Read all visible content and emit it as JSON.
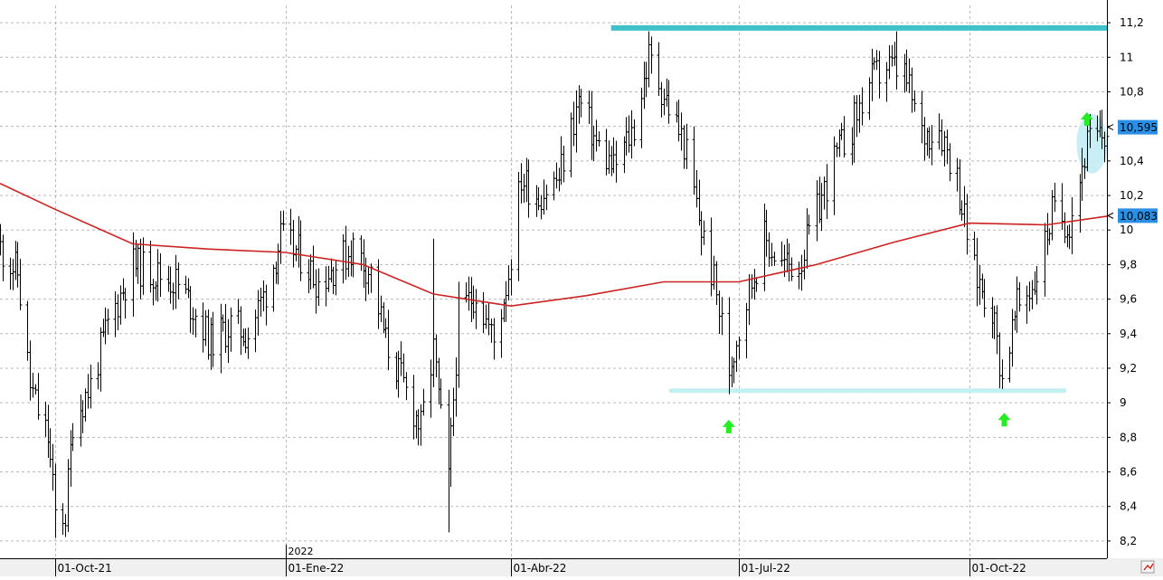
{
  "chart_data": {
    "type": "ohlc",
    "grid": true,
    "y_axis": {
      "side": "right",
      "range": [
        8.1,
        11.3
      ],
      "ticks": [
        8.2,
        8.4,
        8.6,
        8.8,
        9,
        9.2,
        9.4,
        9.6,
        9.8,
        10,
        10.2,
        10.4,
        10.6,
        10.8,
        11,
        11.2
      ],
      "tick_labels": [
        "8,2",
        "8,4",
        "8,6",
        "8,8",
        "9",
        "9,2",
        "9,4",
        "9,6",
        "9,8",
        "10",
        "10,2",
        "10,4",
        "10,6",
        "10,8",
        "11",
        "11,2"
      ]
    },
    "x_axis": {
      "range": [
        "2021-09-09",
        "2022-11-25"
      ],
      "ticks": [
        "2021-10-01",
        "2022-01-01",
        "2022-04-01",
        "2022-07-01",
        "2022-10-01"
      ],
      "tick_labels": [
        "01-Oct-21",
        "01-Ene-22",
        "01-Abr-22",
        "01-Jul-22",
        "01-Oct-22"
      ],
      "year_label": "2022"
    },
    "price_anchors": [
      [
        "2021-09-09",
        9.9
      ],
      [
        "2021-09-16",
        9.75
      ],
      [
        "2021-09-21",
        9.1
      ],
      [
        "2021-09-24",
        8.95
      ],
      [
        "2021-09-28",
        8.8
      ],
      [
        "2021-10-01",
        8.35
      ],
      [
        "2021-10-05",
        8.35
      ],
      [
        "2021-10-08",
        8.9
      ],
      [
        "2021-10-15",
        9.1
      ],
      [
        "2021-10-22",
        9.45
      ],
      [
        "2021-11-01",
        9.8
      ],
      [
        "2021-11-10",
        9.75
      ],
      [
        "2021-11-18",
        9.7
      ],
      [
        "2021-11-25",
        9.55
      ],
      [
        "2021-12-02",
        9.35
      ],
      [
        "2021-12-10",
        9.45
      ],
      [
        "2021-12-17",
        9.4
      ],
      [
        "2021-12-24",
        9.65
      ],
      [
        "2021-12-30",
        9.95
      ],
      [
        "2022-01-07",
        9.85
      ],
      [
        "2022-01-14",
        9.7
      ],
      [
        "2022-01-21",
        9.8
      ],
      [
        "2022-01-28",
        9.9
      ],
      [
        "2022-02-04",
        9.75
      ],
      [
        "2022-02-10",
        9.35
      ],
      [
        "2022-02-17",
        9.1
      ],
      [
        "2022-02-24",
        8.85
      ],
      [
        "2022-03-01",
        9.3
      ],
      [
        "2022-03-04",
        8.9
      ],
      [
        "2022-03-07",
        8.55
      ],
      [
        "2022-03-11",
        9.5
      ],
      [
        "2022-03-18",
        9.65
      ],
      [
        "2022-03-25",
        9.35
      ],
      [
        "2022-03-31",
        9.75
      ],
      [
        "2022-04-05",
        10.3
      ],
      [
        "2022-04-12",
        10.2
      ],
      [
        "2022-04-20",
        10.3
      ],
      [
        "2022-04-28",
        10.75
      ],
      [
        "2022-05-05",
        10.5
      ],
      [
        "2022-05-12",
        10.35
      ],
      [
        "2022-05-20",
        10.6
      ],
      [
        "2022-05-26",
        11.0
      ],
      [
        "2022-06-02",
        10.75
      ],
      [
        "2022-06-09",
        10.5
      ],
      [
        "2022-06-16",
        10.0
      ],
      [
        "2022-06-21",
        9.7
      ],
      [
        "2022-06-27",
        9.2
      ],
      [
        "2022-07-04",
        9.6
      ],
      [
        "2022-07-11",
        9.95
      ],
      [
        "2022-07-18",
        9.8
      ],
      [
        "2022-07-25",
        9.8
      ],
      [
        "2022-08-01",
        10.1
      ],
      [
        "2022-08-08",
        10.4
      ],
      [
        "2022-08-15",
        10.6
      ],
      [
        "2022-08-22",
        10.85
      ],
      [
        "2022-08-29",
        10.95
      ],
      [
        "2022-09-05",
        10.9
      ],
      [
        "2022-09-12",
        10.55
      ],
      [
        "2022-09-19",
        10.6
      ],
      [
        "2022-09-26",
        10.3
      ],
      [
        "2022-10-03",
        9.75
      ],
      [
        "2022-10-10",
        9.55
      ],
      [
        "2022-10-14",
        9.15
      ],
      [
        "2022-10-20",
        9.55
      ],
      [
        "2022-10-27",
        9.7
      ],
      [
        "2022-11-03",
        10.1
      ],
      [
        "2022-11-10",
        10.05
      ],
      [
        "2022-11-17",
        10.5
      ],
      [
        "2022-11-25",
        10.55
      ]
    ],
    "spikes": [
      [
        "2021-10-01",
        "low",
        8.22
      ],
      [
        "2022-03-07",
        "low",
        8.25
      ],
      [
        "2022-03-01",
        "high",
        9.95
      ],
      [
        "2022-05-26",
        "high",
        11.15
      ],
      [
        "2022-06-27",
        "low",
        9.05
      ],
      [
        "2022-09-02",
        "high",
        11.15
      ],
      [
        "2022-10-14",
        "low",
        9.08
      ]
    ],
    "moving_average": {
      "color": "#cc2222",
      "points": [
        [
          "2021-09-09",
          10.27
        ],
        [
          "2021-10-01",
          10.12
        ],
        [
          "2021-11-01",
          9.92
        ],
        [
          "2021-12-01",
          9.89
        ],
        [
          "2022-01-01",
          9.87
        ],
        [
          "2022-02-01",
          9.8
        ],
        [
          "2022-03-01",
          9.63
        ],
        [
          "2022-04-01",
          9.56
        ],
        [
          "2022-05-01",
          9.62
        ],
        [
          "2022-06-01",
          9.7
        ],
        [
          "2022-07-01",
          9.7
        ],
        [
          "2022-08-01",
          9.8
        ],
        [
          "2022-09-01",
          9.93
        ],
        [
          "2022-10-01",
          10.04
        ],
        [
          "2022-11-01",
          10.03
        ],
        [
          "2022-11-25",
          10.08
        ]
      ]
    },
    "resistance_line": {
      "from": "2022-05-11",
      "to": "2022-11-25",
      "value": 11.17,
      "color": "#40c0c8"
    },
    "support_line": {
      "from": "2022-06-04",
      "to": "2022-11-08",
      "value": 9.07,
      "color": "#c0f0f0"
    },
    "markers": [
      {
        "date": "2022-06-27",
        "value": 8.86,
        "shape": "up-arrow",
        "color": "#22ee22"
      },
      {
        "date": "2022-10-15",
        "value": 8.9,
        "shape": "up-arrow",
        "color": "#22ee22"
      },
      {
        "date": "2022-11-17",
        "value": 10.64,
        "shape": "up-arrow",
        "color": "#22ee22"
      }
    ],
    "highlight_ellipse": {
      "center_date": "2022-11-19",
      "center_value": 10.5,
      "color": "#c4ecf4"
    },
    "price_labels": [
      {
        "label": "10,595",
        "value": 10.595,
        "bg": "#2b8fe6",
        "fg": "#000000"
      },
      {
        "label": "10,083",
        "value": 10.083,
        "bg": "#2b8fe6",
        "fg": "#000000"
      }
    ]
  }
}
